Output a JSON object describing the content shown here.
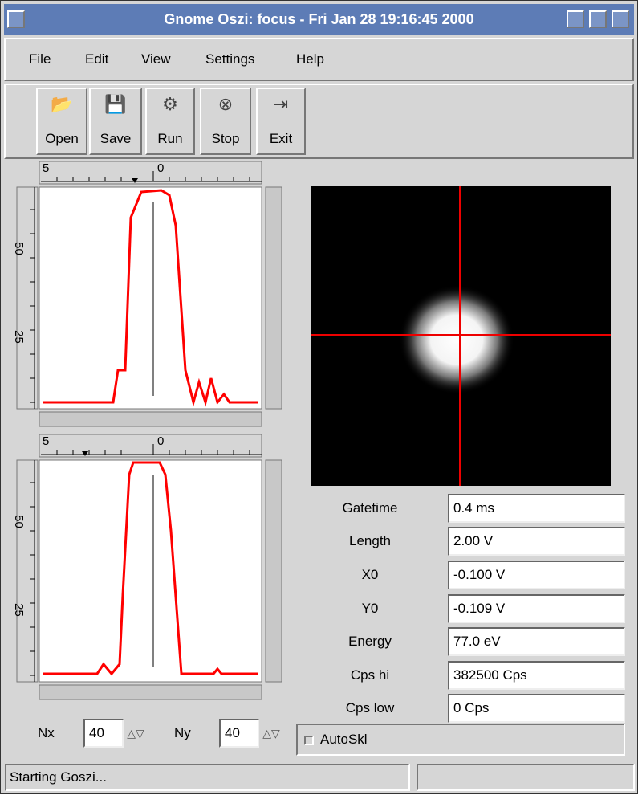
{
  "window": {
    "title": "Gnome Oszi: focus - Fri Jan 28 19:16:45 2000"
  },
  "menu": [
    "File",
    "Edit",
    "View",
    "Settings",
    "Help"
  ],
  "toolbar": [
    "Open",
    "Save",
    "Run",
    "Stop",
    "Exit"
  ],
  "plots": [
    {
      "top_ruler": [
        "5",
        "0"
      ],
      "side_ruler": [
        "50",
        "25"
      ]
    },
    {
      "top_ruler": [
        "5",
        "0"
      ],
      "side_ruler": [
        "50",
        "25"
      ]
    }
  ],
  "fields": [
    {
      "label": "Gatetime",
      "value": "0.4 ms"
    },
    {
      "label": "Length",
      "value": "2.00 V"
    },
    {
      "label": "X0",
      "value": "-0.100 V"
    },
    {
      "label": "Y0",
      "value": "-0.109 V"
    },
    {
      "label": "Energy",
      "value": "77.0 eV"
    },
    {
      "label": "Cps hi",
      "value": "382500 Cps"
    },
    {
      "label": "Cps low",
      "value": "0 Cps"
    }
  ],
  "spin": [
    {
      "label": "Nx",
      "value": "40"
    },
    {
      "label": "Ny",
      "value": "40"
    }
  ],
  "checkbox": "AutoSkl",
  "status": "Starting Goszi..."
}
